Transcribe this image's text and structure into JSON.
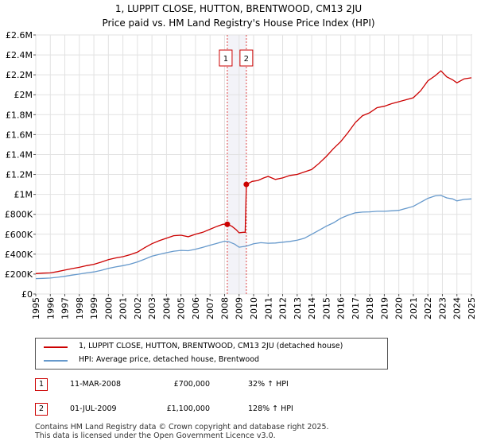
{
  "title_line1": "1, LUPPIT CLOSE, HUTTON, BRENTWOOD, CM13 2JU",
  "title_line2": "Price paid vs. HM Land Registry's House Price Index (HPI)",
  "chart_data": {
    "type": "line",
    "title": "1, LUPPIT CLOSE, HUTTON, BRENTWOOD, CM13 2JU — Price paid vs. HM Land Registry's House Price Index (HPI)",
    "xlim": [
      1995,
      2025
    ],
    "ylim": [
      0,
      2600000
    ],
    "x_ticks": [
      "1995",
      "1996",
      "1997",
      "1998",
      "1999",
      "2000",
      "2001",
      "2002",
      "2003",
      "2004",
      "2005",
      "2006",
      "2007",
      "2008",
      "2009",
      "2010",
      "2011",
      "2012",
      "2013",
      "2014",
      "2015",
      "2016",
      "2017",
      "2018",
      "2019",
      "2020",
      "2021",
      "2022",
      "2023",
      "2024",
      "2025"
    ],
    "y_ticks": [
      {
        "value": 0,
        "label": "£0"
      },
      {
        "value": 200000,
        "label": "£200K"
      },
      {
        "value": 400000,
        "label": "£400K"
      },
      {
        "value": 600000,
        "label": "£600K"
      },
      {
        "value": 800000,
        "label": "£800K"
      },
      {
        "value": 1000000,
        "label": "£1M"
      },
      {
        "value": 1200000,
        "label": "£1.2M"
      },
      {
        "value": 1400000,
        "label": "£1.4M"
      },
      {
        "value": 1600000,
        "label": "£1.6M"
      },
      {
        "value": 1800000,
        "label": "£1.8M"
      },
      {
        "value": 2000000,
        "label": "£2M"
      },
      {
        "value": 2200000,
        "label": "£2.2M"
      },
      {
        "value": 2400000,
        "label": "£2.4M"
      },
      {
        "value": 2600000,
        "label": "£2.6M"
      }
    ],
    "series": [
      {
        "name": "1, LUPPIT CLOSE, HUTTON, BRENTWOOD, CM13 2JU (detached house)",
        "color": "#cc0000",
        "points": [
          [
            1995.0,
            205000
          ],
          [
            1995.5,
            210000
          ],
          [
            1996.0,
            212000
          ],
          [
            1996.5,
            225000
          ],
          [
            1997.0,
            240000
          ],
          [
            1997.5,
            255000
          ],
          [
            1998.0,
            268000
          ],
          [
            1998.5,
            285000
          ],
          [
            1999.0,
            298000
          ],
          [
            1999.5,
            320000
          ],
          [
            2000.0,
            345000
          ],
          [
            2000.5,
            362000
          ],
          [
            2001.0,
            375000
          ],
          [
            2001.5,
            395000
          ],
          [
            2002.0,
            420000
          ],
          [
            2002.5,
            465000
          ],
          [
            2003.0,
            505000
          ],
          [
            2003.5,
            535000
          ],
          [
            2004.0,
            560000
          ],
          [
            2004.5,
            585000
          ],
          [
            2005.0,
            590000
          ],
          [
            2005.5,
            575000
          ],
          [
            2006.0,
            600000
          ],
          [
            2006.5,
            620000
          ],
          [
            2007.0,
            650000
          ],
          [
            2007.5,
            680000
          ],
          [
            2007.9,
            700000
          ],
          [
            2008.19,
            700000
          ],
          [
            2008.5,
            680000
          ],
          [
            2008.8,
            645000
          ],
          [
            2009.0,
            615000
          ],
          [
            2009.3,
            620000
          ],
          [
            2009.42,
            620000
          ],
          [
            2009.5,
            1100000
          ],
          [
            2009.9,
            1130000
          ],
          [
            2010.3,
            1140000
          ],
          [
            2010.7,
            1165000
          ],
          [
            2011.0,
            1180000
          ],
          [
            2011.5,
            1150000
          ],
          [
            2012.0,
            1165000
          ],
          [
            2012.5,
            1190000
          ],
          [
            2013.0,
            1200000
          ],
          [
            2013.5,
            1225000
          ],
          [
            2014.0,
            1250000
          ],
          [
            2014.5,
            1310000
          ],
          [
            2015.0,
            1380000
          ],
          [
            2015.5,
            1460000
          ],
          [
            2016.0,
            1530000
          ],
          [
            2016.5,
            1620000
          ],
          [
            2017.0,
            1720000
          ],
          [
            2017.5,
            1790000
          ],
          [
            2018.0,
            1820000
          ],
          [
            2018.5,
            1870000
          ],
          [
            2019.0,
            1885000
          ],
          [
            2019.5,
            1910000
          ],
          [
            2020.0,
            1930000
          ],
          [
            2020.5,
            1950000
          ],
          [
            2021.0,
            1970000
          ],
          [
            2021.5,
            2040000
          ],
          [
            2022.0,
            2140000
          ],
          [
            2022.5,
            2190000
          ],
          [
            2022.9,
            2240000
          ],
          [
            2023.3,
            2180000
          ],
          [
            2023.7,
            2150000
          ],
          [
            2024.0,
            2120000
          ],
          [
            2024.5,
            2160000
          ],
          [
            2025.0,
            2170000
          ]
        ]
      },
      {
        "name": "HPI: Average price, detached house, Brentwood",
        "color": "#6699cc",
        "points": [
          [
            1995.0,
            155000
          ],
          [
            1995.5,
            157000
          ],
          [
            1996.0,
            160000
          ],
          [
            1996.5,
            168000
          ],
          [
            1997.0,
            178000
          ],
          [
            1997.5,
            190000
          ],
          [
            1998.0,
            200000
          ],
          [
            1998.5,
            212000
          ],
          [
            1999.0,
            222000
          ],
          [
            1999.5,
            238000
          ],
          [
            2000.0,
            258000
          ],
          [
            2000.5,
            272000
          ],
          [
            2001.0,
            285000
          ],
          [
            2001.5,
            300000
          ],
          [
            2002.0,
            322000
          ],
          [
            2002.5,
            350000
          ],
          [
            2003.0,
            380000
          ],
          [
            2003.5,
            398000
          ],
          [
            2004.0,
            415000
          ],
          [
            2004.5,
            430000
          ],
          [
            2005.0,
            438000
          ],
          [
            2005.5,
            435000
          ],
          [
            2006.0,
            450000
          ],
          [
            2006.5,
            468000
          ],
          [
            2007.0,
            490000
          ],
          [
            2007.5,
            510000
          ],
          [
            2008.0,
            530000
          ],
          [
            2008.3,
            525000
          ],
          [
            2008.7,
            500000
          ],
          [
            2009.0,
            470000
          ],
          [
            2009.5,
            480000
          ],
          [
            2010.0,
            505000
          ],
          [
            2010.5,
            515000
          ],
          [
            2011.0,
            510000
          ],
          [
            2011.5,
            512000
          ],
          [
            2012.0,
            520000
          ],
          [
            2012.5,
            528000
          ],
          [
            2013.0,
            540000
          ],
          [
            2013.5,
            560000
          ],
          [
            2014.0,
            600000
          ],
          [
            2014.5,
            640000
          ],
          [
            2015.0,
            680000
          ],
          [
            2015.5,
            715000
          ],
          [
            2016.0,
            760000
          ],
          [
            2016.5,
            790000
          ],
          [
            2017.0,
            815000
          ],
          [
            2017.5,
            822000
          ],
          [
            2018.0,
            825000
          ],
          [
            2018.5,
            830000
          ],
          [
            2019.0,
            830000
          ],
          [
            2019.5,
            835000
          ],
          [
            2020.0,
            840000
          ],
          [
            2020.5,
            860000
          ],
          [
            2021.0,
            880000
          ],
          [
            2021.5,
            920000
          ],
          [
            2022.0,
            960000
          ],
          [
            2022.5,
            985000
          ],
          [
            2022.9,
            990000
          ],
          [
            2023.3,
            965000
          ],
          [
            2023.7,
            955000
          ],
          [
            2024.0,
            935000
          ],
          [
            2024.5,
            950000
          ],
          [
            2025.0,
            955000
          ]
        ]
      }
    ],
    "annotations": [
      {
        "label": "1",
        "x": 2008.19,
        "y": 700000
      },
      {
        "label": "2",
        "x": 2009.5,
        "y": 1100000
      }
    ]
  },
  "legend": {
    "items": [
      {
        "label": "1, LUPPIT CLOSE, HUTTON, BRENTWOOD, CM13 2JU (detached house)",
        "color": "#cc0000"
      },
      {
        "label": "HPI: Average price, detached house, Brentwood",
        "color": "#6699cc"
      }
    ]
  },
  "transactions": [
    {
      "num": "1",
      "date": "11-MAR-2008",
      "price": "£700,000",
      "hpi": "32% ↑ HPI"
    },
    {
      "num": "2",
      "date": "01-JUL-2009",
      "price": "£1,100,000",
      "hpi": "128% ↑ HPI"
    }
  ],
  "footer": {
    "line1": "Contains HM Land Registry data © Crown copyright and database right 2025.",
    "line2": "This data is licensed under the Open Government Licence v3.0."
  }
}
